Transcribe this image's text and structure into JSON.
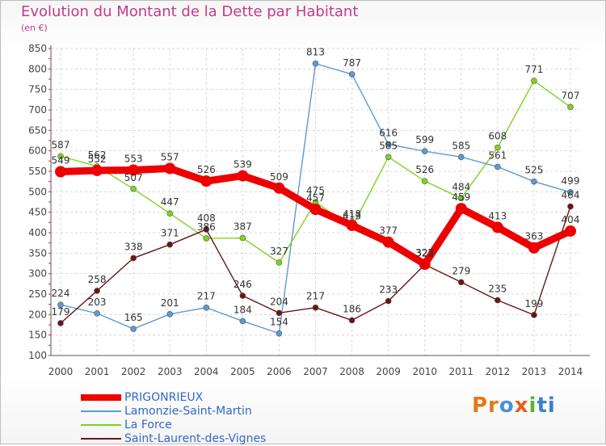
{
  "title": "Evolution du Montant de la Dette par Habitant",
  "subtitle": "(en €)",
  "logo_parts": [
    "Pr",
    "o",
    "x",
    "i",
    "ti"
  ],
  "colors": {
    "title": "#c8398a",
    "logo": [
      "#e07b16",
      "#4a8fd8",
      "#e85d1a",
      "#58b82c",
      "#3b7fd0"
    ]
  },
  "chart_data": {
    "type": "line",
    "title": "Evolution du Montant de la Dette par Habitant",
    "ylabel": "(en €)",
    "xlabel": "",
    "x": [
      2000,
      2001,
      2002,
      2003,
      2004,
      2005,
      2006,
      2007,
      2008,
      2009,
      2010,
      2011,
      2012,
      2013,
      2014
    ],
    "ylim": [
      100,
      850
    ],
    "yticks": [
      100,
      150,
      200,
      250,
      300,
      350,
      400,
      450,
      500,
      550,
      600,
      650,
      700,
      750,
      800,
      850
    ],
    "grid": true,
    "legend_position": "bottom-left",
    "series": [
      {
        "name": "PRIGONRIEUX",
        "color": "#ee0000",
        "values": [
          549,
          552,
          553,
          557,
          526,
          539,
          509,
          457,
          418,
          377,
          323,
          459,
          413,
          363,
          404
        ]
      },
      {
        "name": "Lamonzie-Saint-Martin",
        "color": "#5b9bd5",
        "values": [
          224,
          203,
          165,
          201,
          217,
          184,
          154,
          813,
          787,
          616,
          599,
          585,
          561,
          525,
          499
        ]
      },
      {
        "name": "La Force",
        "color": "#7ed321",
        "values": [
          587,
          562,
          507,
          447,
          386,
          387,
          327,
          475,
          413,
          585,
          526,
          484,
          608,
          771,
          707
        ]
      },
      {
        "name": "Saint-Laurent-des-Vignes",
        "color": "#6b1414",
        "values": [
          179,
          258,
          338,
          371,
          408,
          246,
          204,
          217,
          186,
          233,
          322,
          279,
          235,
          199,
          464
        ]
      }
    ]
  }
}
